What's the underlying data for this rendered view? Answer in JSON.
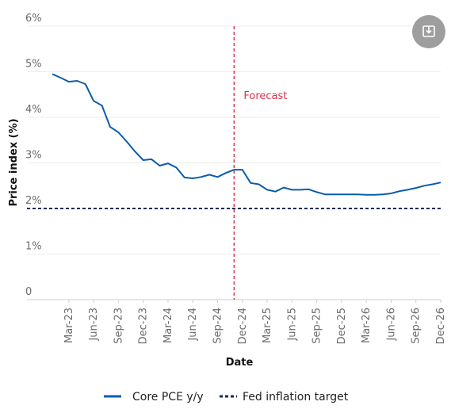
{
  "chart_data": {
    "type": "line",
    "xlabel": "Date",
    "ylabel": "Price index (%)",
    "ylim": [
      0,
      6
    ],
    "y_ticks": [
      0,
      1,
      2,
      3,
      4,
      5,
      6
    ],
    "y_tick_labels": [
      "0",
      "1%",
      "2%",
      "3%",
      "4%",
      "5%",
      "6%"
    ],
    "x_tick_labels": [
      "Mar-23",
      "Jun-23",
      "Sep-23",
      "Dec-23",
      "Mar-24",
      "Jun-24",
      "Sep-24",
      "Dec-24",
      "Mar-25",
      "Jun-25",
      "Sep-25",
      "Dec-25",
      "Mar-26",
      "Jun-26",
      "Sep-26",
      "Dec-26"
    ],
    "x": [
      "Jan-23",
      "Feb-23",
      "Mar-23",
      "Apr-23",
      "May-23",
      "Jun-23",
      "Jul-23",
      "Aug-23",
      "Sep-23",
      "Oct-23",
      "Nov-23",
      "Dec-23",
      "Jan-24",
      "Feb-24",
      "Mar-24",
      "Apr-24",
      "May-24",
      "Jun-24",
      "Jul-24",
      "Aug-24",
      "Sep-24",
      "Oct-24",
      "Nov-24",
      "Dec-24",
      "Jan-25",
      "Feb-25",
      "Mar-25",
      "Apr-25",
      "May-25",
      "Jun-25",
      "Jul-25",
      "Aug-25",
      "Sep-25",
      "Oct-25",
      "Nov-25",
      "Dec-25",
      "Jan-26",
      "Feb-26",
      "Mar-26",
      "Apr-26",
      "May-26",
      "Jun-26",
      "Jul-26",
      "Aug-26",
      "Sep-26",
      "Oct-26",
      "Nov-26",
      "Dec-26"
    ],
    "series": [
      {
        "name": "Core PCE y/y",
        "color": "#0a5cad",
        "values": [
          4.95,
          4.87,
          4.78,
          4.8,
          4.73,
          4.36,
          4.26,
          3.79,
          3.67,
          3.47,
          3.25,
          3.06,
          3.08,
          2.94,
          2.99,
          2.9,
          2.68,
          2.66,
          2.69,
          2.74,
          2.69,
          2.78,
          2.85,
          2.85,
          2.56,
          2.53,
          2.41,
          2.37,
          2.46,
          2.41,
          2.41,
          2.42,
          2.36,
          2.31,
          2.31,
          2.31,
          2.31,
          2.31,
          2.3,
          2.3,
          2.31,
          2.33,
          2.38,
          2.41,
          2.45,
          2.5,
          2.53,
          2.57
        ]
      },
      {
        "name": "Fed inflation target",
        "color": "#0c2a5a",
        "style": "dashed",
        "values": [
          2,
          2,
          2,
          2,
          2,
          2,
          2,
          2,
          2,
          2,
          2,
          2,
          2,
          2,
          2,
          2,
          2,
          2,
          2,
          2,
          2,
          2,
          2,
          2,
          2,
          2,
          2,
          2,
          2,
          2,
          2,
          2,
          2,
          2,
          2,
          2,
          2,
          2,
          2,
          2,
          2,
          2,
          2,
          2,
          2,
          2,
          2,
          2
        ]
      }
    ],
    "forecast": {
      "label": "Forecast",
      "x": "Nov-24",
      "color": "#d8344a"
    },
    "grid": true,
    "legend_position": "bottom"
  },
  "toolbar": {
    "download_icon": "download-icon",
    "button_color": "#9e9e9e"
  }
}
